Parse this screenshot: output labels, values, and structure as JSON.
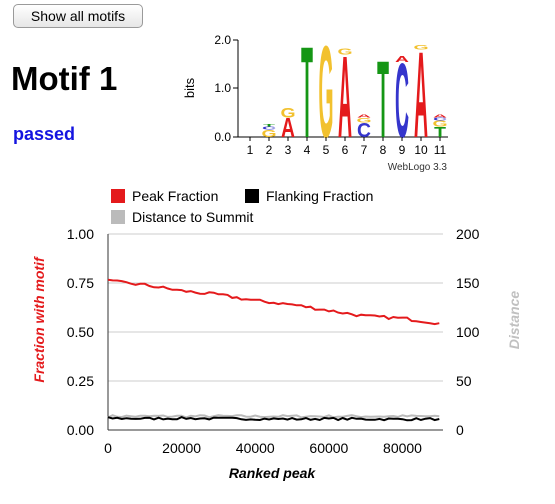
{
  "header": {
    "show_all_button": "Show all motifs",
    "motif_title": "Motif 1",
    "status": "passed",
    "status_color": "#1414e0"
  },
  "logo": {
    "y_axis_label": "bits",
    "y_ticks": [
      "2.0",
      "1.0",
      "0.0"
    ],
    "positions": [
      "1",
      "2",
      "3",
      "4",
      "5",
      "6",
      "7",
      "8",
      "9",
      "10",
      "11"
    ],
    "credit": "WebLogo 3.3",
    "columns": [
      {
        "position": "1",
        "letters": []
      },
      {
        "position": "2",
        "letters": [
          {
            "base": "G",
            "height": 0.15
          },
          {
            "base": "C",
            "height": 0.07
          },
          {
            "base": "T",
            "height": 0.05
          }
        ]
      },
      {
        "position": "3",
        "letters": [
          {
            "base": "A",
            "height": 0.4
          },
          {
            "base": "G",
            "height": 0.2
          }
        ]
      },
      {
        "position": "4",
        "letters": [
          {
            "base": "T",
            "height": 1.9
          }
        ]
      },
      {
        "position": "5",
        "letters": [
          {
            "base": "G",
            "height": 1.92
          }
        ]
      },
      {
        "position": "6",
        "letters": [
          {
            "base": "A",
            "height": 1.7
          },
          {
            "base": "G",
            "height": 0.12
          }
        ]
      },
      {
        "position": "7",
        "letters": [
          {
            "base": "C",
            "height": 0.3
          },
          {
            "base": "G",
            "height": 0.1
          },
          {
            "base": "A",
            "height": 0.06
          }
        ]
      },
      {
        "position": "8",
        "letters": [
          {
            "base": "T",
            "height": 1.6
          }
        ]
      },
      {
        "position": "9",
        "letters": [
          {
            "base": "C",
            "height": 1.55
          },
          {
            "base": "A",
            "height": 0.12
          }
        ]
      },
      {
        "position": "10",
        "letters": [
          {
            "base": "A",
            "height": 1.8
          },
          {
            "base": "G",
            "height": 0.1
          }
        ]
      },
      {
        "position": "11",
        "letters": [
          {
            "base": "T",
            "height": 0.22
          },
          {
            "base": "G",
            "height": 0.12
          },
          {
            "base": "C",
            "height": 0.06
          },
          {
            "base": "A",
            "height": 0.06
          }
        ]
      }
    ],
    "base_colors": {
      "A": "#e41a1c",
      "C": "#3535cc",
      "G": "#f2c12e",
      "T": "#159615"
    }
  },
  "chart_data": {
    "type": "line",
    "x": [
      0,
      10000,
      20000,
      30000,
      40000,
      50000,
      60000,
      70000,
      80000,
      90000
    ],
    "series": [
      {
        "name": "Peak Fraction",
        "axis": "left",
        "color": "#e41a1c",
        "values": [
          0.76,
          0.74,
          0.71,
          0.69,
          0.66,
          0.64,
          0.61,
          0.58,
          0.57,
          0.545
        ]
      },
      {
        "name": "Flanking Fraction",
        "axis": "left",
        "color": "#000000",
        "values": [
          0.06,
          0.058,
          0.06,
          0.058,
          0.057,
          0.056,
          0.057,
          0.056,
          0.055,
          0.056
        ]
      },
      {
        "name": "Distance to Summit",
        "axis": "right",
        "color": "#bbbbbb",
        "values": [
          14,
          14,
          14,
          14,
          14,
          14,
          14,
          14,
          14,
          14
        ]
      }
    ],
    "xlabel": "Ranked peak",
    "ylabel": "Fraction with motif",
    "y2label": "Distance",
    "xticks": [
      "0",
      "20000",
      "40000",
      "60000",
      "80000"
    ],
    "yticks": [
      "1.00",
      "0.75",
      "0.50",
      "0.25",
      "0.00"
    ],
    "y2ticks": [
      "200",
      "150",
      "100",
      "50",
      "0"
    ],
    "xlim": [
      0,
      91000
    ],
    "ylim": [
      0,
      1
    ],
    "y2lim": [
      0,
      200
    ],
    "grid": true,
    "legend_position": "top"
  }
}
